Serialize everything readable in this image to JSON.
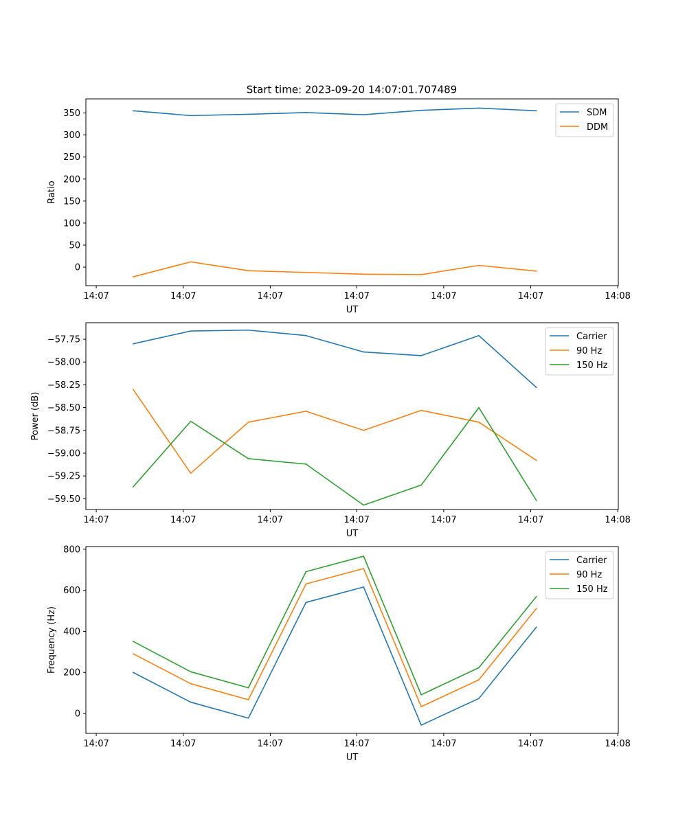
{
  "figure_title": "Start time: 2023-09-20 14:07:01.707489",
  "colors": {
    "blue": "#1f77b4",
    "orange": "#ff7f0e",
    "green": "#2ca02c"
  },
  "chart_data": [
    {
      "type": "line",
      "title": "Start time: 2023-09-20 14:07:01.707489",
      "xlabel": "UT",
      "ylabel": "Ratio",
      "x": [
        1,
        2,
        3,
        4,
        5,
        6,
        7,
        8
      ],
      "xlim": [
        0.18,
        9.42
      ],
      "x_ticks": [
        0.36,
        1.87,
        3.38,
        4.88,
        6.39,
        7.9,
        9.41
      ],
      "x_tick_labels": [
        "14:07",
        "14:07",
        "14:07",
        "14:07",
        "14:07",
        "14:07",
        "14:08"
      ],
      "ylim": [
        -42,
        382
      ],
      "y_ticks": [
        0,
        50,
        100,
        150,
        200,
        250,
        300,
        350
      ],
      "y_tick_labels": [
        "0",
        "50",
        "100",
        "150",
        "200",
        "250",
        "300",
        "350"
      ],
      "legend": "top-right",
      "series": [
        {
          "name": "SDM",
          "color": "#1f77b4",
          "values": [
            355,
            344,
            347,
            351,
            346,
            356,
            361,
            355
          ]
        },
        {
          "name": "DDM",
          "color": "#ff7f0e",
          "values": [
            -22,
            12,
            -8,
            -12,
            -16,
            -17,
            4,
            -9
          ]
        }
      ]
    },
    {
      "type": "line",
      "title": "",
      "xlabel": "UT",
      "ylabel": "Power (dB)",
      "x": [
        1,
        2,
        3,
        4,
        5,
        6,
        7,
        8
      ],
      "xlim": [
        0.18,
        9.42
      ],
      "x_ticks": [
        0.36,
        1.87,
        3.38,
        4.88,
        6.39,
        7.9,
        9.41
      ],
      "x_tick_labels": [
        "14:07",
        "14:07",
        "14:07",
        "14:07",
        "14:07",
        "14:07",
        "14:08"
      ],
      "ylim": [
        -59.618,
        -57.569
      ],
      "y_ticks": [
        -59.5,
        -59.25,
        -59.0,
        -58.75,
        -58.5,
        -58.25,
        -58.0,
        -57.75
      ],
      "y_tick_labels": [
        "−59.50",
        "−59.25",
        "−59.00",
        "−58.75",
        "−58.50",
        "−58.25",
        "−58.00",
        "−57.75"
      ],
      "legend": "top-right",
      "series": [
        {
          "name": "Carrier",
          "color": "#1f77b4",
          "values": [
            -57.8,
            -57.66,
            -57.65,
            -57.71,
            -57.89,
            -57.93,
            -57.71,
            -58.28
          ]
        },
        {
          "name": "90 Hz",
          "color": "#ff7f0e",
          "values": [
            -58.3,
            -59.22,
            -58.66,
            -58.54,
            -58.75,
            -58.53,
            -58.66,
            -59.08
          ]
        },
        {
          "name": "150 Hz",
          "color": "#2ca02c",
          "values": [
            -59.37,
            -58.65,
            -59.06,
            -59.12,
            -59.57,
            -59.35,
            -58.5,
            -59.52
          ]
        }
      ]
    },
    {
      "type": "line",
      "title": "",
      "xlabel": "UT",
      "ylabel": "Frequency (Hz)",
      "x": [
        1,
        2,
        3,
        4,
        5,
        6,
        7,
        8
      ],
      "xlim": [
        0.18,
        9.42
      ],
      "x_ticks": [
        0.36,
        1.87,
        3.38,
        4.88,
        6.39,
        7.9,
        9.41
      ],
      "x_tick_labels": [
        "14:07",
        "14:07",
        "14:07",
        "14:07",
        "14:07",
        "14:07",
        "14:08"
      ],
      "ylim": [
        -97,
        813
      ],
      "y_ticks": [
        0,
        200,
        400,
        600,
        800
      ],
      "y_tick_labels": [
        "0",
        "200",
        "400",
        "600",
        "800"
      ],
      "legend": "top-right",
      "series": [
        {
          "name": "Carrier",
          "color": "#1f77b4",
          "values": [
            200,
            55,
            -23,
            541,
            616,
            -57,
            73,
            421
          ]
        },
        {
          "name": "90 Hz",
          "color": "#ff7f0e",
          "values": [
            291,
            145,
            67,
            631,
            706,
            33,
            164,
            512
          ]
        },
        {
          "name": "150 Hz",
          "color": "#2ca02c",
          "values": [
            351,
            203,
            125,
            691,
            766,
            91,
            223,
            570
          ]
        }
      ]
    }
  ]
}
